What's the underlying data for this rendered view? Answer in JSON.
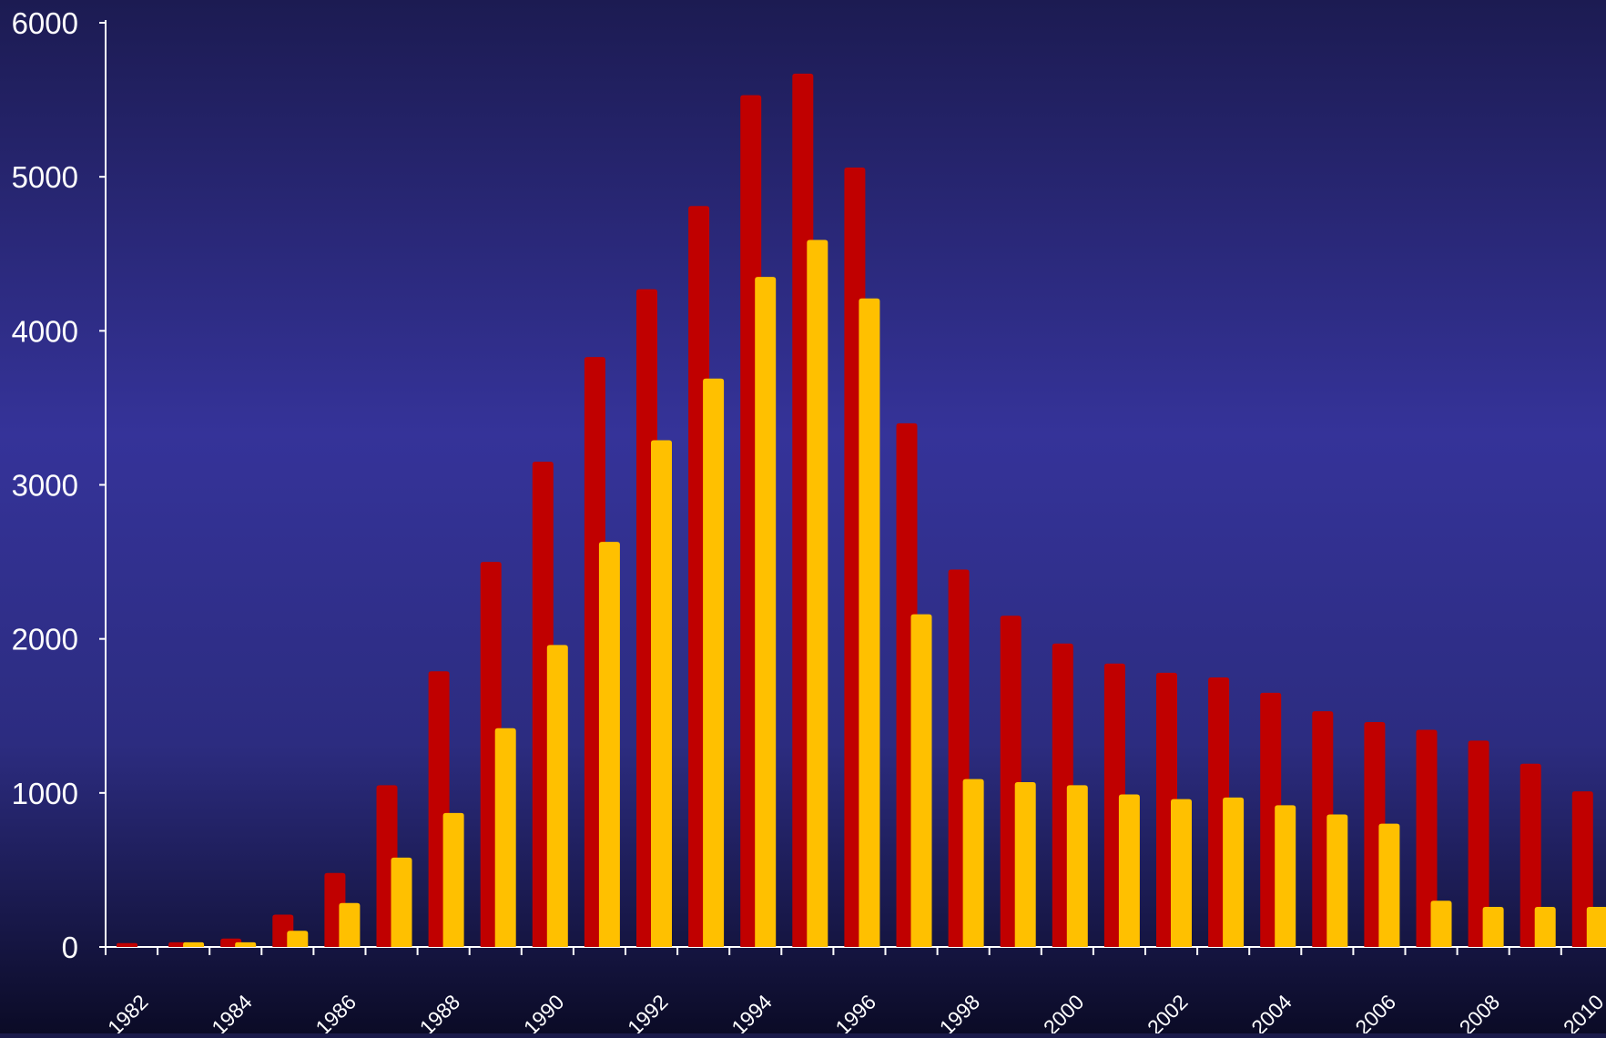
{
  "chart_data": {
    "type": "bar",
    "title": "",
    "xlabel": "",
    "ylabel": "",
    "ylim": [
      0,
      6000
    ],
    "yticks": [
      0,
      1000,
      2000,
      3000,
      4000,
      5000,
      6000
    ],
    "grid": false,
    "legend": "none",
    "categories": [
      "1982",
      "1983",
      "1984",
      "1985",
      "1986",
      "1987",
      "1988",
      "1989",
      "1990",
      "1991",
      "1992",
      "1993",
      "1994",
      "1995",
      "1996",
      "1997",
      "1998",
      "1999",
      "2000",
      "2001",
      "2002",
      "2003",
      "2004",
      "2005",
      "2006",
      "2007",
      "2008",
      "2009",
      "2010"
    ],
    "xtick_labels": [
      "1982",
      "1984",
      "1986",
      "1988",
      "1990",
      "1992",
      "1994",
      "1996",
      "1998",
      "2000",
      "2002",
      "2004",
      "2006",
      "2008",
      "2010"
    ],
    "series": [
      {
        "color": "#c00000",
        "values": [
          25,
          30,
          55,
          210,
          480,
          1050,
          1790,
          2500,
          3150,
          3830,
          4270,
          4810,
          5530,
          5670,
          5060,
          3400,
          2450,
          2150,
          1970,
          1840,
          1780,
          1750,
          1650,
          1530,
          1460,
          1410,
          1340,
          1190,
          1010
        ]
      },
      {
        "color": "#ffc000",
        "values": [
          0,
          30,
          30,
          105,
          285,
          580,
          870,
          1420,
          1960,
          2630,
          3290,
          3690,
          4350,
          4590,
          4210,
          2160,
          1090,
          1070,
          1050,
          990,
          960,
          970,
          920,
          860,
          800,
          300,
          260,
          260,
          260
        ]
      }
    ]
  }
}
